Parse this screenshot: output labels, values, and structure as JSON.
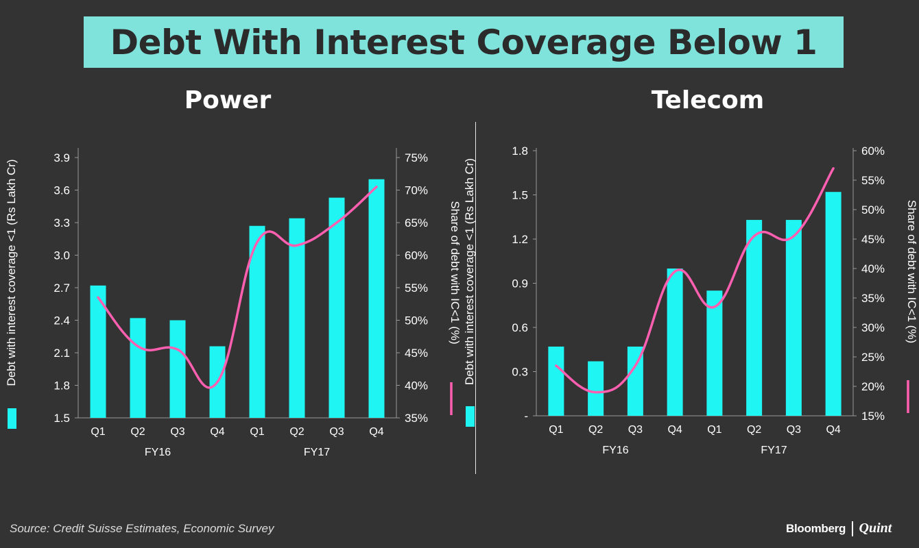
{
  "title": "Debt With Interest Coverage Below 1",
  "source": "Source: Credit Suisse Estimates, Economic Survey",
  "brand": {
    "primary": "Bloomberg",
    "secondary": "Quint"
  },
  "colors": {
    "bar": "#1ff5f2",
    "line": "#ff5fb0",
    "banner": "#7fe3dc",
    "background": "#333333"
  },
  "chart_data": [
    {
      "type": "bar",
      "title": "Power",
      "categories": [
        "Q1",
        "Q2",
        "Q3",
        "Q4",
        "Q1",
        "Q2",
        "Q3",
        "Q4"
      ],
      "groups": [
        "FY16",
        "FY17"
      ],
      "ylabel": "Debt with interest coverage <1 (Rs Lakh Cr)",
      "y2label": "Share of debt with IC<1 (%)",
      "ylim": [
        1.5,
        3.9
      ],
      "y2lim": [
        35,
        75
      ],
      "yticks": [
        "1.5",
        "1.8",
        "2.1",
        "2.4",
        "2.7",
        "3.0",
        "3.3",
        "3.6",
        "3.9"
      ],
      "y2ticks": [
        "35%",
        "40%",
        "45%",
        "50%",
        "55%",
        "60%",
        "65%",
        "70%",
        "75%"
      ],
      "series": [
        {
          "name": "Debt with interest coverage <1 (Rs Lakh Cr)",
          "type": "bar",
          "axis": "left",
          "values": [
            2.72,
            2.42,
            2.4,
            2.16,
            3.27,
            3.34,
            3.53,
            3.7
          ]
        },
        {
          "name": "Share of debt with IC<1 (%)",
          "type": "line",
          "axis": "right",
          "values": [
            53.5,
            46,
            45.5,
            40.5,
            62,
            61.5,
            65,
            70.5
          ]
        }
      ]
    },
    {
      "type": "bar",
      "title": "Telecom",
      "categories": [
        "Q1",
        "Q2",
        "Q3",
        "Q4",
        "Q1",
        "Q2",
        "Q3",
        "Q4"
      ],
      "groups": [
        "FY16",
        "FY17"
      ],
      "ylabel": "Debt with interest coverage <1 (Rs Lakh Cr)",
      "y2label": "Share of debt with IC<1 (%)",
      "ylim": [
        0,
        1.8
      ],
      "y2lim": [
        15,
        60
      ],
      "yticks": [
        "-",
        "0.3",
        "0.6",
        "0.9",
        "1.2",
        "1.5",
        "1.8"
      ],
      "y2ticks": [
        "15%",
        "20%",
        "25%",
        "30%",
        "35%",
        "40%",
        "45%",
        "50%",
        "55%",
        "60%"
      ],
      "series": [
        {
          "name": "Debt with interest coverage <1 (Rs Lakh Cr)",
          "type": "bar",
          "axis": "left",
          "values": [
            0.47,
            0.37,
            0.47,
            1.0,
            0.85,
            1.33,
            1.33,
            1.52
          ]
        },
        {
          "name": "Share of debt with IC<1 (%)",
          "type": "line",
          "axis": "right",
          "values": [
            23.5,
            19,
            23.5,
            39.5,
            33.5,
            45.5,
            45.5,
            57
          ]
        }
      ]
    }
  ]
}
